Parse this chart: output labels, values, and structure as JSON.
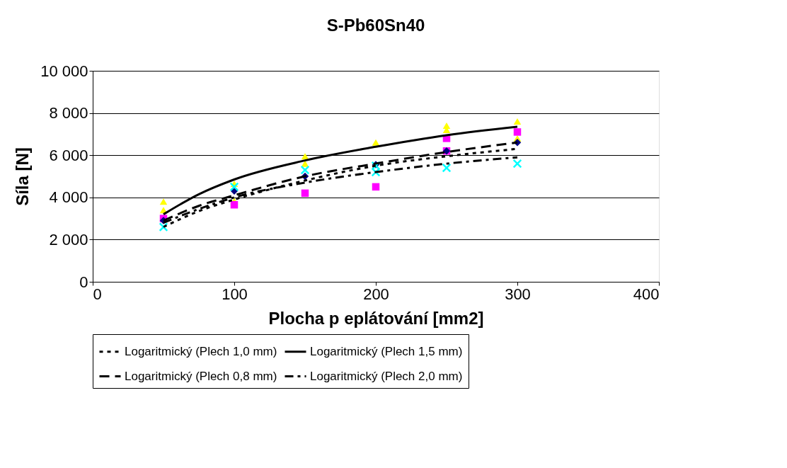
{
  "chart_data": {
    "type": "scatter",
    "title": "S-Pb60Sn40",
    "xlabel": "Plocha p eplátování [mm2]",
    "ylabel": "Síla [N]",
    "xlim": [
      0,
      400
    ],
    "xticks": [
      0,
      100,
      200,
      300,
      400
    ],
    "ylim": [
      0,
      10000
    ],
    "yticks": [
      0,
      {
        "value": 2000,
        "label": "2 000"
      },
      {
        "value": 4000,
        "label": "4 000"
      },
      {
        "value": 6000,
        "label": "6 000"
      },
      {
        "value": 8000,
        "label": "8 000"
      },
      {
        "value": 10000,
        "label": "10 000"
      }
    ],
    "grid": "y",
    "legend": "bottom",
    "series": [
      {
        "marker": "triangle",
        "color": "#ffff00",
        "x": [
          50,
          50,
          100,
          100,
          150,
          150,
          200,
          250,
          250,
          300,
          300
        ],
        "values": [
          3800,
          3400,
          3830,
          4650,
          5950,
          5600,
          6600,
          7400,
          7200,
          7600,
          6800
        ]
      },
      {
        "marker": "square",
        "color": "#ff00ff",
        "x": [
          50,
          100,
          150,
          200,
          250,
          250,
          300
        ],
        "values": [
          3000,
          3650,
          4200,
          4500,
          6800,
          6200,
          7100
        ]
      },
      {
        "marker": "diamond",
        "color": "#000080",
        "x": [
          50,
          100,
          150,
          200,
          250,
          300
        ],
        "values": [
          2900,
          4300,
          5000,
          5550,
          6200,
          6600
        ]
      },
      {
        "marker": "cross",
        "color": "#00ffff",
        "x": [
          50,
          100,
          150,
          200,
          200,
          250,
          300
        ],
        "values": [
          2600,
          4500,
          5300,
          5500,
          5200,
          5400,
          5600
        ]
      },
      {
        "type": "line",
        "name": "Logaritmický (Plech 1,0 mm)",
        "line_style": "dotted",
        "color": "#000000",
        "x": [
          50,
          75,
          100,
          150,
          200,
          250,
          300
        ],
        "values": [
          2600,
          3350,
          3900,
          4800,
          5500,
          5950,
          6300
        ]
      },
      {
        "type": "line",
        "name": "Logaritmický (Plech 1,5 mm)",
        "line_style": "solid",
        "color": "#000000",
        "x": [
          50,
          75,
          100,
          150,
          200,
          250,
          300
        ],
        "values": [
          3200,
          4150,
          4850,
          5750,
          6400,
          6950,
          7350
        ]
      },
      {
        "type": "line",
        "name": "Logaritmický (Plech 0,8 mm)",
        "line_style": "dashed",
        "color": "#000000",
        "x": [
          50,
          75,
          100,
          150,
          200,
          250,
          300
        ],
        "values": [
          2900,
          3600,
          4100,
          5000,
          5600,
          6150,
          6600
        ]
      },
      {
        "type": "line",
        "name": "Logaritmický (Plech 2,0 mm)",
        "line_style": "dashdot",
        "color": "#000000",
        "x": [
          50,
          75,
          100,
          150,
          200,
          250,
          300
        ],
        "values": [
          2800,
          3450,
          4000,
          4700,
          5200,
          5600,
          5900
        ]
      }
    ]
  }
}
